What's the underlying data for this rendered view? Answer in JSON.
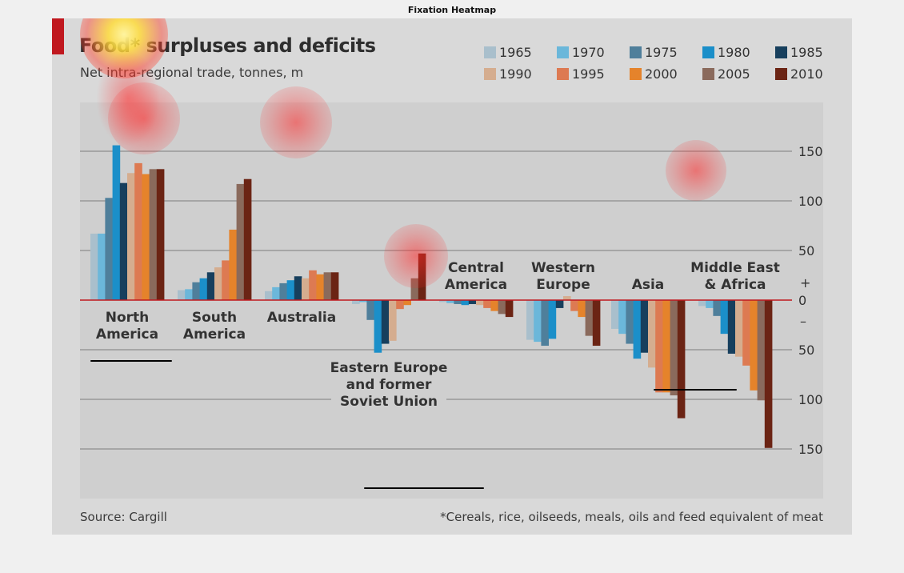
{
  "figure": {
    "title": "Fixation Heatmap"
  },
  "chart_data": {
    "type": "bar",
    "title": "Food* surpluses and deficits",
    "subtitle": "Net intra-regional trade, tonnes, m",
    "source": "Source: Cargill",
    "footnote": "*Cereals, rice, oilseeds, meals, oils and feed equivalent of meat",
    "ylim": [
      -190,
      185
    ],
    "yticks": [
      {
        "value": 150,
        "label": "150"
      },
      {
        "value": 100,
        "label": "100"
      },
      {
        "value": 50,
        "label": "50"
      },
      {
        "value": 0,
        "label": "0"
      },
      {
        "value": -50,
        "label": "50"
      },
      {
        "value": -100,
        "label": "100"
      },
      {
        "value": -150,
        "label": "150"
      }
    ],
    "plus_sign": "+",
    "minus_sign": "–",
    "grid": true,
    "legend_position": "top-right",
    "series": [
      {
        "name": "1965",
        "color": "#a9bfcc"
      },
      {
        "name": "1970",
        "color": "#6bb7da"
      },
      {
        "name": "1975",
        "color": "#4f7f9b"
      },
      {
        "name": "1980",
        "color": "#1b8fc9"
      },
      {
        "name": "1985",
        "color": "#173f5d"
      },
      {
        "name": "1990",
        "color": "#d5ad8f"
      },
      {
        "name": "1995",
        "color": "#dd7a52"
      },
      {
        "name": "2000",
        "color": "#e5832b"
      },
      {
        "name": "2005",
        "color": "#8a6a5c"
      },
      {
        "name": "2010",
        "color": "#6b2414"
      }
    ],
    "categories": [
      {
        "label": [
          "North",
          "America"
        ],
        "values": [
          67,
          67,
          103,
          156,
          118,
          128,
          138,
          127,
          132,
          132
        ]
      },
      {
        "label": [
          "South",
          "America"
        ],
        "values": [
          10,
          11,
          18,
          22,
          28,
          33,
          40,
          71,
          117,
          122
        ]
      },
      {
        "label": [
          "Australia"
        ],
        "values": [
          9,
          13,
          17,
          20,
          24,
          22,
          30,
          26,
          28,
          28
        ]
      },
      {
        "label": [
          "Eastern Europe",
          "and former",
          "Soviet Union"
        ],
        "values": [
          -4,
          -2,
          -20,
          -53,
          -44,
          -41,
          -9,
          -5,
          22,
          47
        ]
      },
      {
        "label": [
          "Central",
          "America"
        ],
        "values": [
          -2,
          -3,
          -4,
          -5,
          -4,
          -5,
          -8,
          -11,
          -14,
          -17
        ]
      },
      {
        "label": [
          "Western",
          "Europe"
        ],
        "values": [
          -40,
          -42,
          -46,
          -39,
          -8,
          4,
          -11,
          -17,
          -36,
          -46
        ]
      },
      {
        "label": [
          "Asia"
        ],
        "values": [
          -29,
          -34,
          -44,
          -59,
          -53,
          -68,
          -93,
          -93,
          -96,
          -119
        ]
      },
      {
        "label": [
          "Middle East",
          "& Africa"
        ],
        "values": [
          -6,
          -8,
          -16,
          -34,
          -54,
          -57,
          -66,
          -91,
          -101,
          -149
        ]
      }
    ]
  },
  "overlay": {
    "fixation_color": "#ff2a2a",
    "peak_color": "#fff4a0",
    "underline_color": "#000000"
  }
}
